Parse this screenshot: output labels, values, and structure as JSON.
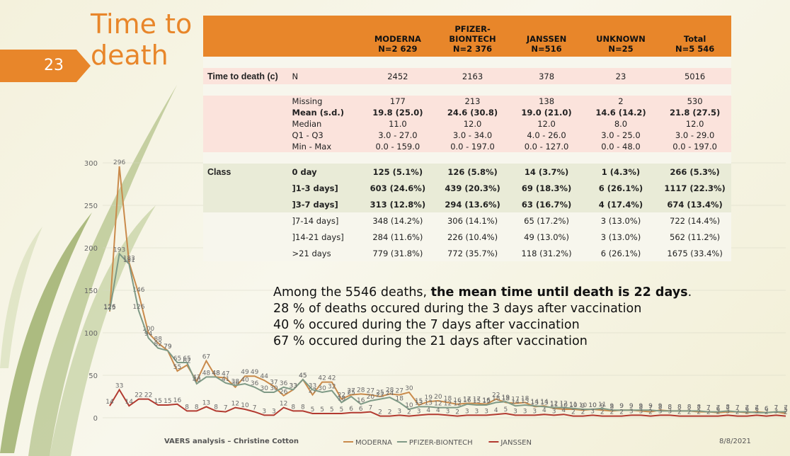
{
  "slide": {
    "title_line1": "Time to",
    "title_line2": "death",
    "number": "23",
    "footer_left": "VAERS analysis – Christine Cotton",
    "footer_date": "8/8/2021"
  },
  "table": {
    "headers": [
      "",
      "",
      "MODERNA\nN=2 629",
      "PFIZER-\nBIONTECH\nN=2 376",
      "JANSSEN\nN=516",
      "UNKNOWN\nN=25",
      "Total\nN=5 546"
    ],
    "rows": [
      {
        "style": "white",
        "label": "",
        "sub": "",
        "vals": [
          "",
          "",
          "",
          "",
          ""
        ]
      },
      {
        "style": "pink",
        "label": "Time to death (c)",
        "sub": "N",
        "vals": [
          "2452",
          "2163",
          "378",
          "23",
          "5016"
        ],
        "tall": true
      },
      {
        "style": "white",
        "label": "",
        "sub": "",
        "vals": [
          "",
          "",
          "",
          "",
          ""
        ]
      },
      {
        "style": "pink",
        "label": "",
        "sub": "Missing",
        "vals": [
          "177",
          "213",
          "138",
          "2",
          "530"
        ]
      },
      {
        "style": "pink",
        "label": "",
        "sub": "Mean (s.d.)",
        "vals": [
          "19.8 (25.0)",
          "24.6 (30.8)",
          "19.0 (21.0)",
          "14.6 (14.2)",
          "21.8 (27.5)"
        ],
        "bold": true
      },
      {
        "style": "pink",
        "label": "",
        "sub": "Median",
        "vals": [
          "11.0",
          "12.0",
          "12.0",
          "8.0",
          "12.0"
        ]
      },
      {
        "style": "pink",
        "label": "",
        "sub": "Q1 - Q3",
        "vals": [
          "3.0 - 27.0",
          "3.0 - 34.0",
          "4.0 - 26.0",
          "3.0 - 25.0",
          "3.0 - 29.0"
        ]
      },
      {
        "style": "pink",
        "label": "",
        "sub": "Min - Max",
        "vals": [
          "0.0 - 159.0",
          "0.0 - 197.0",
          "0.0 - 127.0",
          "0.0 - 48.0",
          "0.0 - 197.0"
        ]
      },
      {
        "style": "white",
        "label": "",
        "sub": "",
        "vals": [
          "",
          "",
          "",
          "",
          ""
        ]
      },
      {
        "style": "green",
        "label": "Class",
        "sub": "0 day",
        "vals": [
          "125 (5.1%)",
          "126 (5.8%)",
          "14 (3.7%)",
          "1 (4.3%)",
          "266 (5.3%)"
        ],
        "bold": true,
        "tall": true
      },
      {
        "style": "green",
        "label": "",
        "sub": "]1-3 days]",
        "vals": [
          "603 (24.6%)",
          "439 (20.3%)",
          "69 (18.3%)",
          "6 (26.1%)",
          "1117 (22.3%)"
        ],
        "bold": true,
        "tall": true
      },
      {
        "style": "green",
        "label": "",
        "sub": "]3-7 days]",
        "vals": [
          "313 (12.8%)",
          "294 (13.6%)",
          "63 (16.7%)",
          "4 (17.4%)",
          "674 (13.4%)"
        ],
        "bold": true,
        "tall": true
      },
      {
        "style": "white",
        "label": "",
        "sub": "]7-14 days]",
        "vals": [
          "348 (14.2%)",
          "306 (14.1%)",
          "65 (17.2%)",
          "3 (13.0%)",
          "722 (14.4%)"
        ],
        "tall": true
      },
      {
        "style": "white",
        "label": "",
        "sub": "]14-21 days]",
        "vals": [
          "284 (11.6%)",
          "226 (10.4%)",
          "49 (13.0%)",
          "3 (13.0%)",
          "562 (11.2%)"
        ],
        "tall": true
      },
      {
        "style": "white",
        "label": "",
        "sub": ">21 days",
        "vals": [
          "779 (31.8%)",
          "772 (35.7%)",
          "118 (31.2%)",
          "6 (26.1%)",
          "1675 (33.4%)"
        ],
        "tall": true
      }
    ]
  },
  "summary": {
    "line1_pre": "Among the 5546 deaths, ",
    "line1_bold": "the mean time until death is 22 days",
    "line1_post": ".",
    "line2": "28 % of deaths occured during the 3 days after vaccination",
    "line3": "40 % occured during the 7 days after vaccination",
    "line4": "67 % occured during the 21 days after vaccination"
  },
  "chart_data": {
    "type": "line",
    "title": "",
    "xlabel": "",
    "ylabel": "",
    "ylim": [
      0,
      300
    ],
    "yticks": [
      "0",
      "50",
      "100",
      "150",
      "200",
      "250",
      "300"
    ],
    "legend": "bottom",
    "series": [
      {
        "name": "MODERNA",
        "color": "#c98a4b",
        "values": [
          125,
          296,
          183,
          146,
          100,
          88,
          79,
          55,
          62,
          43,
          67,
          48,
          47,
          36,
          49,
          49,
          44,
          37,
          26,
          33,
          45,
          27,
          42,
          42,
          22,
          27,
          28,
          27,
          25,
          28,
          27,
          30,
          15,
          19,
          20,
          18,
          16,
          17,
          17,
          16,
          22,
          18,
          17,
          18,
          13,
          14,
          11,
          10,
          10,
          9,
          10,
          9,
          8,
          9,
          9,
          8,
          7,
          9,
          8,
          8,
          8,
          7,
          7,
          6,
          7,
          7,
          6,
          7,
          6,
          7,
          5
        ],
        "labels": [
          "125",
          "296",
          "183",
          "146",
          "100",
          "88",
          "79",
          "55",
          "62",
          "43",
          "67",
          "48",
          "47",
          "36",
          "49",
          "49",
          "44",
          "37",
          "26",
          "33",
          "45",
          "27",
          "42",
          "42",
          "22",
          "27",
          "28",
          "27",
          "25",
          "28",
          "27",
          "30",
          "15",
          "19",
          "20",
          "18",
          "16",
          "17",
          "17",
          "16",
          "22",
          "18",
          "17",
          "18",
          "13",
          "14",
          "11",
          "10",
          "10",
          "9",
          "10",
          "9",
          "8",
          "9",
          "9",
          "8",
          "7",
          "9",
          "8",
          "8",
          "8",
          "7",
          "7",
          "6",
          "7",
          "7",
          "6",
          "7",
          "6",
          "7",
          "5"
        ]
      },
      {
        "name": "PFIZER-BIONTECH",
        "color": "#7f9a86",
        "values": [
          126,
          193,
          181,
          126,
          94,
          82,
          79,
          65,
          65,
          40,
          48,
          48,
          41,
          38,
          40,
          36,
          30,
          30,
          36,
          33,
          45,
          33,
          30,
          32,
          18,
          25,
          16,
          20,
          22,
          24,
          18,
          10,
          13,
          13,
          12,
          12,
          12,
          16,
          15,
          15,
          18,
          19,
          14,
          15,
          14,
          13,
          12,
          12,
          11,
          10,
          10,
          11,
          9,
          9,
          9,
          9,
          9,
          8,
          8,
          8,
          8,
          8,
          7,
          7,
          8,
          7,
          7,
          6,
          6,
          7,
          7
        ],
        "labels": [
          "126",
          "193",
          "181",
          "126",
          "94",
          "82",
          "79",
          "65",
          "65",
          "40",
          "48",
          "48",
          "41",
          "38",
          "40",
          "36",
          "30",
          "30",
          "36",
          "33",
          "45",
          "33",
          "30",
          "32",
          "18",
          "25",
          "16",
          "20",
          "22",
          "24",
          "18",
          "10",
          "13",
          "13",
          "12",
          "12",
          "12",
          "16",
          "15",
          "15",
          "18",
          "19",
          "14",
          "15",
          "14",
          "13",
          "12",
          "12",
          "11",
          "10",
          "10",
          "11",
          "9",
          "9",
          "9",
          "9",
          "9",
          "8",
          "8",
          "8",
          "8",
          "8",
          "7",
          "7",
          "8",
          "7",
          "7",
          "6",
          "6",
          "7",
          "7"
        ]
      },
      {
        "name": "JANSSEN",
        "color": "#b23a30",
        "values": [
          14,
          33,
          14,
          22,
          22,
          15,
          15,
          16,
          8,
          8,
          13,
          8,
          7,
          12,
          10,
          7,
          3,
          3,
          12,
          8,
          8,
          5,
          5,
          5,
          5,
          6,
          6,
          7,
          2,
          2,
          3,
          2,
          3,
          4,
          4,
          3,
          2,
          3,
          3,
          3,
          4,
          5,
          3,
          3,
          3,
          4,
          3,
          4,
          2,
          2,
          3,
          2,
          2,
          2,
          3,
          3,
          2,
          3,
          3,
          2,
          2,
          2,
          2,
          2,
          3,
          2,
          2,
          3,
          2,
          3,
          2
        ],
        "labels": [
          "14",
          "33",
          "14",
          "22",
          "22",
          "15",
          "15",
          "16",
          "8",
          "8",
          "13",
          "8",
          "7",
          "12",
          "10",
          "7",
          "3",
          "3",
          "12",
          "8",
          "8",
          "5",
          "5",
          "5",
          "5",
          "6",
          "6",
          "7",
          "2",
          "2",
          "3",
          "2",
          "3",
          "4",
          "4",
          "3",
          "2",
          "3",
          "3",
          "3",
          "4",
          "5",
          "3",
          "3",
          "3",
          "4",
          "3",
          "4",
          "2",
          "2",
          "3",
          "2",
          "2",
          "2",
          "3",
          "3",
          "2",
          "3",
          "3",
          "2",
          "2",
          "2",
          "2",
          "2",
          "3",
          "2",
          "2",
          "3",
          "2",
          "3",
          "2"
        ]
      }
    ]
  }
}
